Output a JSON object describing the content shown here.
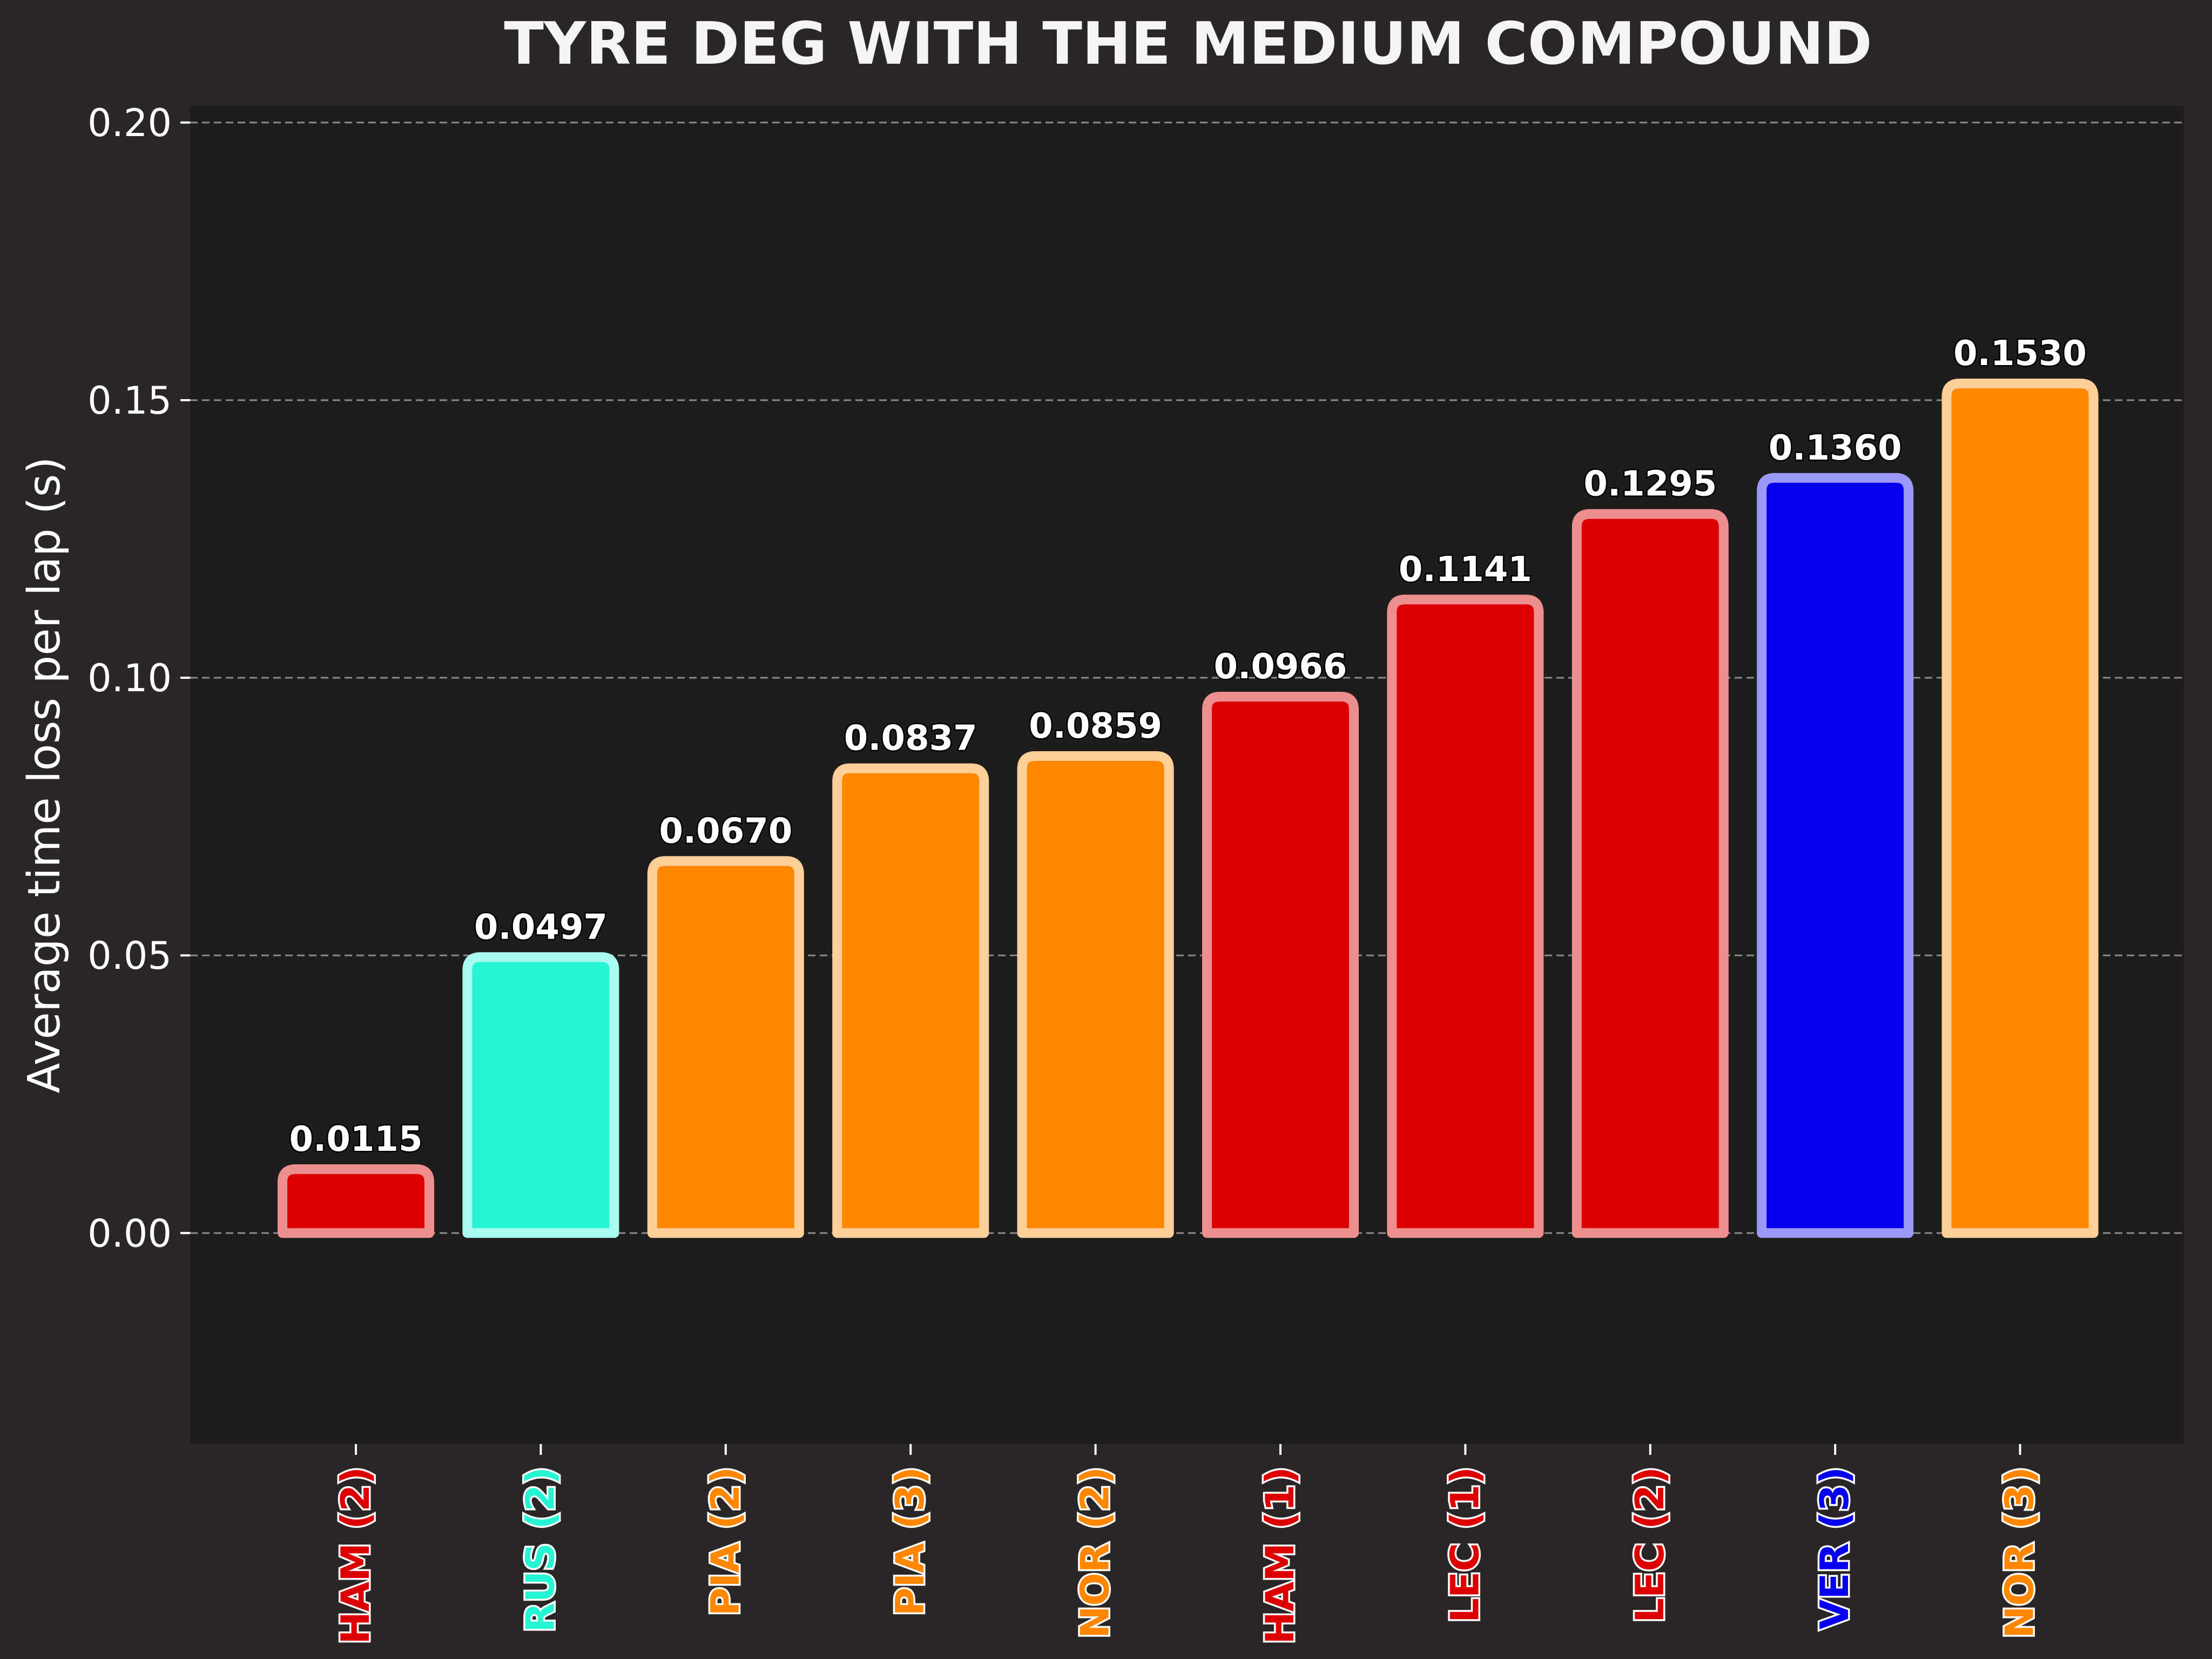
{
  "chart_data": {
    "type": "bar",
    "title": "TYRE DEG WITH THE MEDIUM COMPOUND",
    "xlabel": "",
    "ylabel": "Average time loss per lap (s)",
    "ylim": [
      -0.038,
      0.203
    ],
    "yticks": [
      "0.00",
      "0.05",
      "0.10",
      "0.15",
      "0.20"
    ],
    "ytick_values": [
      0.0,
      0.05,
      0.1,
      0.15,
      0.2
    ],
    "grid": true,
    "legend": "none",
    "categories": [
      "HAM (2)",
      "RUS (2)",
      "PIA (2)",
      "PIA (3)",
      "NOR (2)",
      "HAM (1)",
      "LEC (1)",
      "LEC (2)",
      "VER (3)",
      "NOR (3)"
    ],
    "values": [
      0.0115,
      0.0497,
      0.067,
      0.0837,
      0.0859,
      0.0966,
      0.1141,
      0.1295,
      0.136,
      0.153
    ],
    "value_labels": [
      "0.0115",
      "0.0497",
      "0.0670",
      "0.0837",
      "0.0859",
      "0.0966",
      "0.1141",
      "0.1295",
      "0.1360",
      "0.1530"
    ],
    "bar_colors": [
      "#dc0000",
      "#27f4d2",
      "#ff8700",
      "#ff8700",
      "#ff8700",
      "#dc0000",
      "#dc0000",
      "#dc0000",
      "#0600ef",
      "#ff8700"
    ],
    "edge_colors": [
      "#ee8f8f",
      "#a9fbef",
      "#ffcf99",
      "#ffcf99",
      "#ffcf99",
      "#ee8f8f",
      "#ee8f8f",
      "#ee8f8f",
      "#9d99f8",
      "#ffcf99"
    ],
    "colors": {
      "background": "#2a2626",
      "plot_background": "#1e1d1c",
      "grid": "#8a8a8a",
      "text": "#ffffff"
    }
  }
}
